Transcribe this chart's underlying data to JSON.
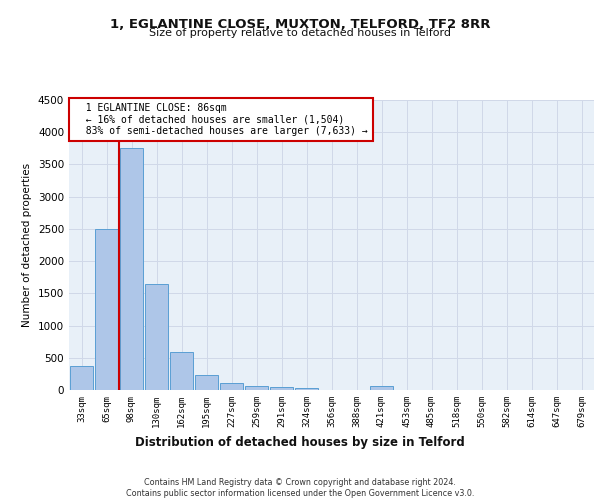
{
  "title1": "1, EGLANTINE CLOSE, MUXTON, TELFORD, TF2 8RR",
  "title2": "Size of property relative to detached houses in Telford",
  "xlabel": "Distribution of detached houses by size in Telford",
  "ylabel": "Number of detached properties",
  "categories": [
    "33sqm",
    "65sqm",
    "98sqm",
    "130sqm",
    "162sqm",
    "195sqm",
    "227sqm",
    "259sqm",
    "291sqm",
    "324sqm",
    "356sqm",
    "388sqm",
    "421sqm",
    "453sqm",
    "485sqm",
    "518sqm",
    "550sqm",
    "582sqm",
    "614sqm",
    "647sqm",
    "679sqm"
  ],
  "values": [
    370,
    2500,
    3750,
    1640,
    590,
    230,
    105,
    65,
    45,
    35,
    5,
    0,
    55,
    0,
    0,
    0,
    0,
    0,
    0,
    0,
    0
  ],
  "bar_color": "#aec6e8",
  "bar_edge_color": "#5a9fd4",
  "vline_color": "#cc0000",
  "annotation_text": "  1 EGLANTINE CLOSE: 86sqm\n  ← 16% of detached houses are smaller (1,504)\n  83% of semi-detached houses are larger (7,633) →",
  "annotation_box_color": "#ffffff",
  "annotation_box_edge": "#cc0000",
  "ylim": [
    0,
    4500
  ],
  "yticks": [
    0,
    500,
    1000,
    1500,
    2000,
    2500,
    3000,
    3500,
    4000,
    4500
  ],
  "grid_color": "#d0d8e8",
  "bg_color": "#e8f0f8",
  "footer": "Contains HM Land Registry data © Crown copyright and database right 2024.\nContains public sector information licensed under the Open Government Licence v3.0."
}
